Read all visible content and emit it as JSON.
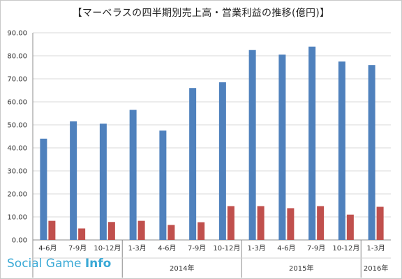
{
  "chart_data": {
    "type": "bar",
    "title": "【マーベラスの四半期別売上高・営業利益の推移(億円)】",
    "categories": [
      "4-6月",
      "7-9月",
      "10-12月",
      "1-3月",
      "4-6月",
      "7-9月",
      "10-12月",
      "1-3月",
      "4-6月",
      "7-9月",
      "10-12月",
      "1-3月"
    ],
    "groups": [
      {
        "label": "",
        "start": 0,
        "end": 3
      },
      {
        "label": "2014年",
        "start": 3,
        "end": 7
      },
      {
        "label": "2015年",
        "start": 7,
        "end": 11
      },
      {
        "label": "2016年",
        "start": 11,
        "end": 12
      }
    ],
    "series": [
      {
        "name": "",
        "color": "#4f81bd",
        "values": [
          44.0,
          51.5,
          50.5,
          56.5,
          47.5,
          66.0,
          68.5,
          82.5,
          80.5,
          84.0,
          77.5,
          76.0
        ]
      },
      {
        "name": "",
        "color": "#c0504d",
        "values": [
          8.3,
          5.0,
          7.8,
          8.3,
          6.5,
          7.7,
          14.7,
          14.7,
          13.8,
          14.7,
          11.0,
          14.4
        ]
      }
    ],
    "ylim": [
      0,
      90
    ],
    "yticks": [
      "0.00",
      "10.00",
      "20.00",
      "30.00",
      "40.00",
      "50.00",
      "60.00",
      "70.00",
      "80.00",
      "90.00"
    ],
    "grid": true,
    "legend": "none"
  },
  "watermark": {
    "light": "Social Game ",
    "bold": "Info"
  }
}
